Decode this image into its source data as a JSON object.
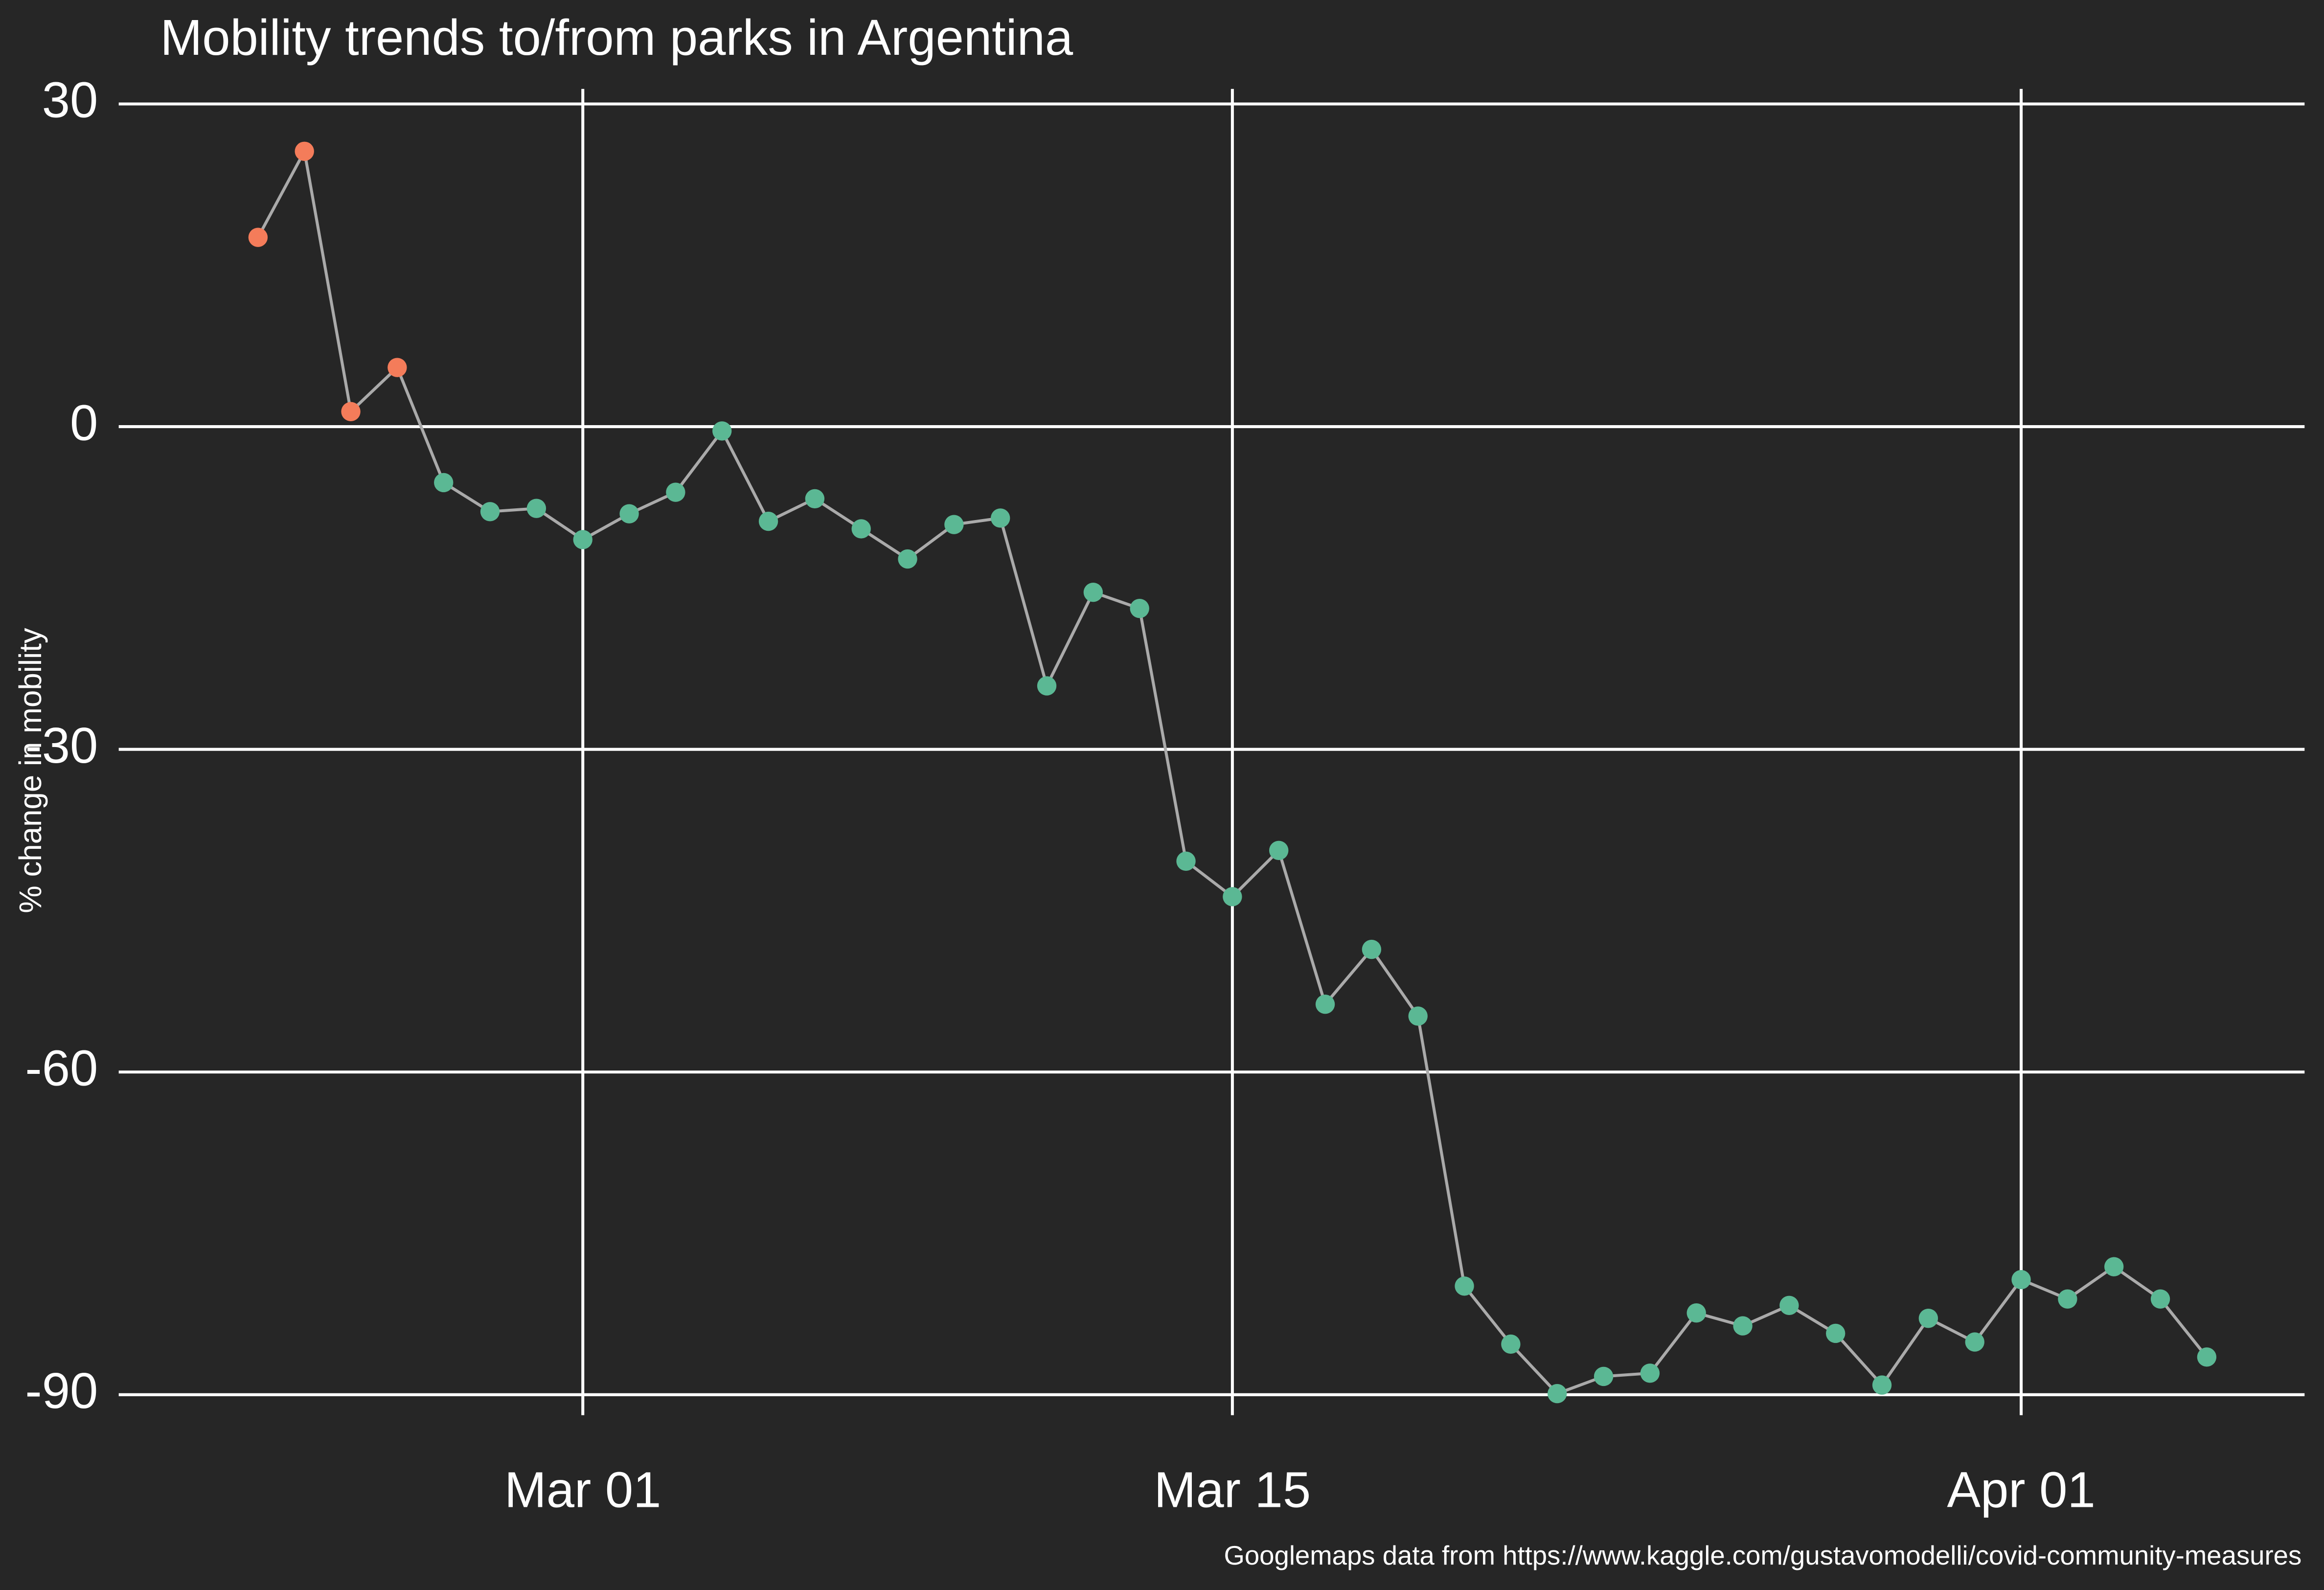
{
  "chart_data": {
    "type": "line",
    "title": "Mobility trends to/from parks in Argentina",
    "ylabel": "% change in mobility",
    "caption": "Googlemaps data from https://www.kaggle.com/gustavomodelli/covid-community-measures",
    "x": [
      "Feb 23",
      "Feb 24",
      "Feb 25",
      "Feb 26",
      "Feb 27",
      "Feb 28",
      "Feb 29",
      "Mar 01",
      "Mar 02",
      "Mar 03",
      "Mar 04",
      "Mar 05",
      "Mar 06",
      "Mar 07",
      "Mar 08",
      "Mar 09",
      "Mar 10",
      "Mar 11",
      "Mar 12",
      "Mar 13",
      "Mar 14",
      "Mar 15",
      "Mar 16",
      "Mar 17",
      "Mar 18",
      "Mar 19",
      "Mar 20",
      "Mar 21",
      "Mar 22",
      "Mar 23",
      "Mar 24",
      "Mar 25",
      "Mar 26",
      "Mar 27",
      "Mar 28",
      "Mar 29",
      "Mar 30",
      "Mar 31",
      "Apr 01",
      "Apr 02",
      "Apr 03",
      "Apr 04",
      "Apr 05"
    ],
    "series": [
      {
        "color": "#aaaaaa",
        "values": [
          17.6,
          25.6,
          1.4,
          5.5,
          -5.2,
          -7.9,
          -7.6,
          -10.5,
          -8.1,
          -6.1,
          -0.4,
          -8.8,
          -6.7,
          -9.5,
          -12.3,
          -9.1,
          -8.5,
          -24.1,
          -15.4,
          -16.9,
          -40.4,
          -43.7,
          -39.4,
          -53.7,
          -48.6,
          -54.8,
          -79.9,
          -85.3,
          -89.9,
          -88.3,
          -88.0,
          -82.4,
          -83.6,
          -81.7,
          -84.3,
          -89.1,
          -82.9,
          -85.1,
          -79.3,
          -81.1,
          -78.1,
          -81.1,
          -86.5
        ],
        "point_colors": [
          "#f47c5a",
          "#f47c5a",
          "#f47c5a",
          "#f47c5a",
          "#5bb894",
          "#5bb894",
          "#5bb894",
          "#5bb894",
          "#5bb894",
          "#5bb894",
          "#5bb894",
          "#5bb894",
          "#5bb894",
          "#5bb894",
          "#5bb894",
          "#5bb894",
          "#5bb894",
          "#5bb894",
          "#5bb894",
          "#5bb894",
          "#5bb894",
          "#5bb894",
          "#5bb894",
          "#5bb894",
          "#5bb894",
          "#5bb894",
          "#5bb894",
          "#5bb894",
          "#5bb894",
          "#5bb894",
          "#5bb894",
          "#5bb894",
          "#5bb894",
          "#5bb894",
          "#5bb894",
          "#5bb894",
          "#5bb894",
          "#5bb894",
          "#5bb894",
          "#5bb894",
          "#5bb894",
          "#5bb894",
          "#5bb894"
        ]
      }
    ],
    "xticks": [
      "Mar 01",
      "Mar 15",
      "Apr 01"
    ],
    "ylim": [
      -91.9,
      31.4
    ],
    "yticks": [
      30,
      0,
      -30,
      -60,
      -90
    ],
    "grid": true
  }
}
